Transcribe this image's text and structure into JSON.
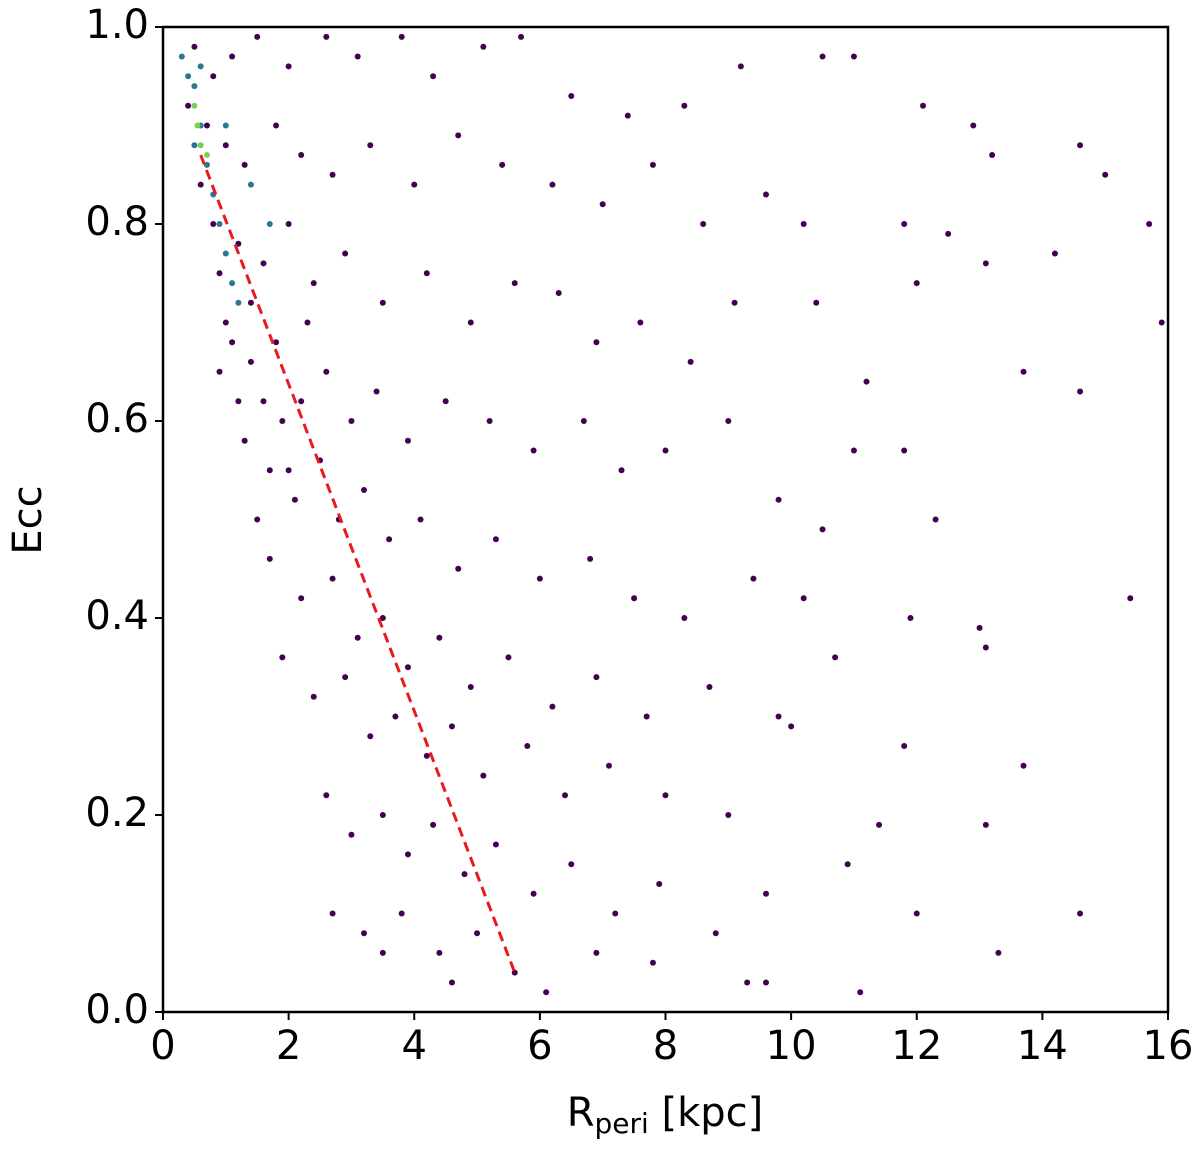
{
  "chart_data": {
    "type": "scatter",
    "xlabel": "R",
    "xlabel_sub": "peri",
    "xlabel_suffix": "[kpc]",
    "ylabel": "Ecc",
    "xlim": [
      0,
      16
    ],
    "ylim": [
      0,
      1
    ],
    "xticks": [
      0,
      2,
      4,
      6,
      8,
      10,
      12,
      14,
      16
    ],
    "yticks": [
      {
        "value": 0,
        "label": "0.0"
      },
      0.2,
      0.4,
      0.6,
      0.8,
      {
        "value": 1,
        "label": "1.0"
      }
    ],
    "grid": false,
    "series": [
      {
        "color": "#440154",
        "points": [
          [
            0.5,
            0.98
          ],
          [
            0.8,
            0.95
          ],
          [
            1.1,
            0.97
          ],
          [
            1.5,
            0.99
          ],
          [
            2.0,
            0.96
          ],
          [
            2.6,
            0.99
          ],
          [
            3.1,
            0.97
          ],
          [
            3.8,
            0.99
          ],
          [
            4.3,
            0.95
          ],
          [
            5.1,
            0.98
          ],
          [
            5.7,
            0.99
          ],
          [
            6.5,
            0.93
          ],
          [
            7.4,
            0.91
          ],
          [
            8.3,
            0.92
          ],
          [
            9.2,
            0.96
          ],
          [
            10.5,
            0.97
          ],
          [
            11.0,
            0.97
          ],
          [
            12.1,
            0.92
          ],
          [
            12.9,
            0.9
          ],
          [
            14.6,
            0.88
          ],
          [
            15.0,
            0.85
          ],
          [
            13.2,
            0.87
          ],
          [
            0.7,
            0.9
          ],
          [
            1.0,
            0.88
          ],
          [
            1.3,
            0.86
          ],
          [
            1.8,
            0.9
          ],
          [
            2.2,
            0.87
          ],
          [
            2.7,
            0.85
          ],
          [
            3.3,
            0.88
          ],
          [
            4.0,
            0.84
          ],
          [
            4.7,
            0.89
          ],
          [
            5.4,
            0.86
          ],
          [
            6.2,
            0.84
          ],
          [
            7.0,
            0.82
          ],
          [
            7.8,
            0.86
          ],
          [
            8.6,
            0.8
          ],
          [
            9.6,
            0.83
          ],
          [
            10.2,
            0.8
          ],
          [
            11.8,
            0.8
          ],
          [
            12.5,
            0.79
          ],
          [
            14.2,
            0.77
          ],
          [
            15.7,
            0.8
          ],
          [
            0.8,
            0.8
          ],
          [
            1.2,
            0.78
          ],
          [
            1.6,
            0.76
          ],
          [
            2.0,
            0.8
          ],
          [
            2.4,
            0.74
          ],
          [
            2.9,
            0.77
          ],
          [
            3.5,
            0.72
          ],
          [
            4.2,
            0.75
          ],
          [
            4.9,
            0.7
          ],
          [
            5.6,
            0.74
          ],
          [
            6.3,
            0.73
          ],
          [
            6.9,
            0.68
          ],
          [
            7.6,
            0.7
          ],
          [
            8.4,
            0.66
          ],
          [
            9.1,
            0.72
          ],
          [
            10.4,
            0.72
          ],
          [
            11.2,
            0.64
          ],
          [
            12.0,
            0.74
          ],
          [
            13.1,
            0.76
          ],
          [
            15.9,
            0.7
          ],
          [
            13.7,
            0.65
          ],
          [
            14.6,
            0.63
          ],
          [
            1.0,
            0.7
          ],
          [
            1.4,
            0.66
          ],
          [
            1.8,
            0.68
          ],
          [
            2.2,
            0.62
          ],
          [
            2.6,
            0.65
          ],
          [
            3.0,
            0.6
          ],
          [
            3.4,
            0.63
          ],
          [
            3.9,
            0.58
          ],
          [
            4.5,
            0.62
          ],
          [
            5.2,
            0.6
          ],
          [
            5.9,
            0.57
          ],
          [
            6.7,
            0.6
          ],
          [
            7.3,
            0.55
          ],
          [
            8.0,
            0.57
          ],
          [
            9.0,
            0.6
          ],
          [
            9.8,
            0.52
          ],
          [
            11.0,
            0.57
          ],
          [
            11.8,
            0.57
          ],
          [
            12.3,
            0.5
          ],
          [
            10.5,
            0.49
          ],
          [
            1.3,
            0.58
          ],
          [
            1.7,
            0.55
          ],
          [
            2.1,
            0.52
          ],
          [
            2.5,
            0.56
          ],
          [
            2.8,
            0.5
          ],
          [
            3.2,
            0.53
          ],
          [
            3.6,
            0.48
          ],
          [
            4.1,
            0.5
          ],
          [
            4.7,
            0.45
          ],
          [
            5.3,
            0.48
          ],
          [
            6.0,
            0.44
          ],
          [
            6.8,
            0.46
          ],
          [
            7.5,
            0.42
          ],
          [
            8.3,
            0.4
          ],
          [
            9.4,
            0.44
          ],
          [
            10.2,
            0.42
          ],
          [
            11.9,
            0.4
          ],
          [
            13.0,
            0.39
          ],
          [
            15.4,
            0.42
          ],
          [
            1.7,
            0.46
          ],
          [
            2.2,
            0.42
          ],
          [
            2.7,
            0.44
          ],
          [
            3.1,
            0.38
          ],
          [
            3.5,
            0.4
          ],
          [
            3.9,
            0.35
          ],
          [
            4.4,
            0.38
          ],
          [
            4.9,
            0.33
          ],
          [
            5.5,
            0.36
          ],
          [
            6.2,
            0.31
          ],
          [
            6.9,
            0.34
          ],
          [
            7.7,
            0.3
          ],
          [
            8.7,
            0.33
          ],
          [
            9.8,
            0.3
          ],
          [
            10.0,
            0.29
          ],
          [
            10.7,
            0.36
          ],
          [
            13.1,
            0.37
          ],
          [
            1.9,
            0.36
          ],
          [
            2.4,
            0.32
          ],
          [
            2.9,
            0.34
          ],
          [
            3.3,
            0.28
          ],
          [
            3.7,
            0.3
          ],
          [
            4.2,
            0.26
          ],
          [
            4.6,
            0.29
          ],
          [
            5.1,
            0.24
          ],
          [
            5.8,
            0.27
          ],
          [
            6.4,
            0.22
          ],
          [
            7.1,
            0.25
          ],
          [
            8.0,
            0.22
          ],
          [
            9.0,
            0.2
          ],
          [
            11.8,
            0.27
          ],
          [
            13.7,
            0.25
          ],
          [
            2.6,
            0.22
          ],
          [
            3.0,
            0.18
          ],
          [
            3.5,
            0.2
          ],
          [
            3.9,
            0.16
          ],
          [
            4.3,
            0.19
          ],
          [
            4.8,
            0.14
          ],
          [
            5.3,
            0.17
          ],
          [
            5.9,
            0.12
          ],
          [
            6.5,
            0.15
          ],
          [
            7.2,
            0.1
          ],
          [
            7.9,
            0.13
          ],
          [
            8.8,
            0.08
          ],
          [
            9.6,
            0.12
          ],
          [
            10.9,
            0.15
          ],
          [
            11.4,
            0.19
          ],
          [
            12.0,
            0.1
          ],
          [
            13.1,
            0.19
          ],
          [
            14.6,
            0.1
          ],
          [
            2.7,
            0.1
          ],
          [
            3.2,
            0.08
          ],
          [
            3.8,
            0.1
          ],
          [
            4.4,
            0.06
          ],
          [
            5.0,
            0.08
          ],
          [
            5.6,
            0.04
          ],
          [
            6.1,
            0.02
          ],
          [
            6.9,
            0.06
          ],
          [
            7.8,
            0.05
          ],
          [
            9.3,
            0.03
          ],
          [
            9.6,
            0.03
          ],
          [
            11.1,
            0.02
          ],
          [
            13.3,
            0.06
          ],
          [
            4.6,
            0.03
          ],
          [
            3.5,
            0.06
          ],
          [
            0.4,
            0.92
          ],
          [
            0.6,
            0.84
          ],
          [
            0.9,
            0.75
          ],
          [
            1.1,
            0.68
          ],
          [
            1.4,
            0.72
          ],
          [
            1.6,
            0.62
          ],
          [
            1.9,
            0.6
          ],
          [
            2.3,
            0.7
          ],
          [
            2.0,
            0.55
          ],
          [
            1.5,
            0.5
          ],
          [
            1.2,
            0.62
          ],
          [
            0.9,
            0.65
          ]
        ]
      },
      {
        "color": "#2a788e",
        "points": [
          [
            0.3,
            0.97
          ],
          [
            0.5,
            0.94
          ],
          [
            0.6,
            0.9
          ],
          [
            0.7,
            0.86
          ],
          [
            0.8,
            0.83
          ],
          [
            0.9,
            0.8
          ],
          [
            1.0,
            0.77
          ],
          [
            1.1,
            0.74
          ],
          [
            1.2,
            0.72
          ],
          [
            0.5,
            0.88
          ],
          [
            0.4,
            0.95
          ],
          [
            1.4,
            0.84
          ],
          [
            1.7,
            0.8
          ],
          [
            0.6,
            0.96
          ],
          [
            1.0,
            0.9
          ]
        ]
      },
      {
        "color": "#7ad151",
        "points": [
          [
            0.5,
            0.92
          ],
          [
            0.6,
            0.88
          ],
          [
            0.55,
            0.9
          ],
          [
            0.7,
            0.87
          ]
        ]
      }
    ],
    "lines": [
      {
        "color": "#e8191f",
        "dashed": true,
        "x": [
          0.6,
          5.6
        ],
        "y": [
          0.87,
          0.04
        ]
      }
    ]
  }
}
